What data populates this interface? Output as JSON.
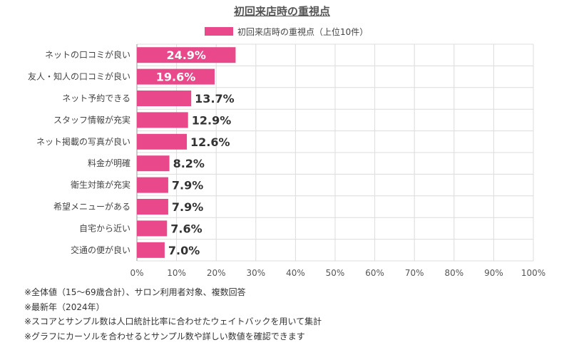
{
  "chart_data": {
    "type": "bar",
    "orientation": "horizontal",
    "title": "初回来店時の重視点",
    "legend": {
      "position": "top-center",
      "entries": [
        "初回来店時の重視点（上位10件）"
      ]
    },
    "categories": [
      "ネットの口コミが良い",
      "友人・知人の口コミが良い",
      "ネット予約できる",
      "スタッフ情報が充実",
      "ネット掲載の写真が良い",
      "料金が明確",
      "衛生対策が充実",
      "希望メニューがある",
      "自宅から近い",
      "交通の便が良い"
    ],
    "series": [
      {
        "name": "初回来店時の重視点（上位10件）",
        "values": [
          24.9,
          19.6,
          13.7,
          12.9,
          12.6,
          8.2,
          7.9,
          7.9,
          7.6,
          7.0
        ]
      }
    ],
    "data_labels": [
      "24.9%",
      "19.6%",
      "13.7%",
      "12.9%",
      "12.6%",
      "8.2%",
      "7.9%",
      "7.9%",
      "7.6%",
      "7.0%"
    ],
    "x_ticks": [
      "0%",
      "10%",
      "20%",
      "30%",
      "40%",
      "50%",
      "60%",
      "70%",
      "80%",
      "90%",
      "100%"
    ],
    "xlim": [
      0,
      100
    ],
    "grid": true,
    "colors": {
      "bar": "#e9498a",
      "grid": "#dcdcdc",
      "axis": "#999999"
    }
  },
  "notes": [
    "※全体値（15〜69歳合計）、サロン利用者対象、複数回答",
    "※最新年（2024年）",
    "※スコアとサンプル数は人口統計比率に合わせたウェイトバックを用いて集計",
    "※グラフにカーソルを合わせるとサンプル数や詳しい数値を確認できます"
  ]
}
